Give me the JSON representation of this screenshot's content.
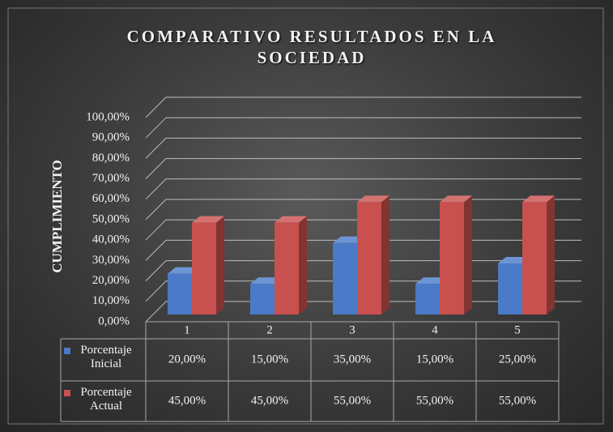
{
  "chart_data": {
    "type": "bar",
    "title": "COMPARATIVO RESULTADOS EN LA SOCIEDAD",
    "y_label": "CUMPLIMIENTO",
    "categories": [
      "1",
      "2",
      "3",
      "4",
      "5"
    ],
    "series": [
      {
        "name": "Porcentaje Inicial",
        "color": "#4a7ac8",
        "values": [
          20,
          15,
          35,
          15,
          25
        ],
        "value_labels": [
          "20,00%",
          "15,00%",
          "35,00%",
          "15,00%",
          "25,00%"
        ]
      },
      {
        "name": "Porcentaje Actual",
        "color": "#c8504e",
        "values": [
          45,
          45,
          55,
          55,
          55
        ],
        "value_labels": [
          "45,00%",
          "45,00%",
          "55,00%",
          "55,00%",
          "55,00%"
        ]
      }
    ],
    "ylim": [
      0,
      100
    ],
    "yticks": [
      {
        "value": 0,
        "label": "0,00%"
      },
      {
        "value": 10,
        "label": "10,00%"
      },
      {
        "value": 20,
        "label": "20,00%"
      },
      {
        "value": 30,
        "label": "30,00%"
      },
      {
        "value": 40,
        "label": "40,00%"
      },
      {
        "value": 50,
        "label": "50,00%"
      },
      {
        "value": 60,
        "label": "60,00%"
      },
      {
        "value": 70,
        "label": "70,00%"
      },
      {
        "value": 80,
        "label": "80,00%"
      },
      {
        "value": 90,
        "label": "90,00%"
      },
      {
        "value": 100,
        "label": "100,00%"
      }
    ],
    "grid": true
  }
}
